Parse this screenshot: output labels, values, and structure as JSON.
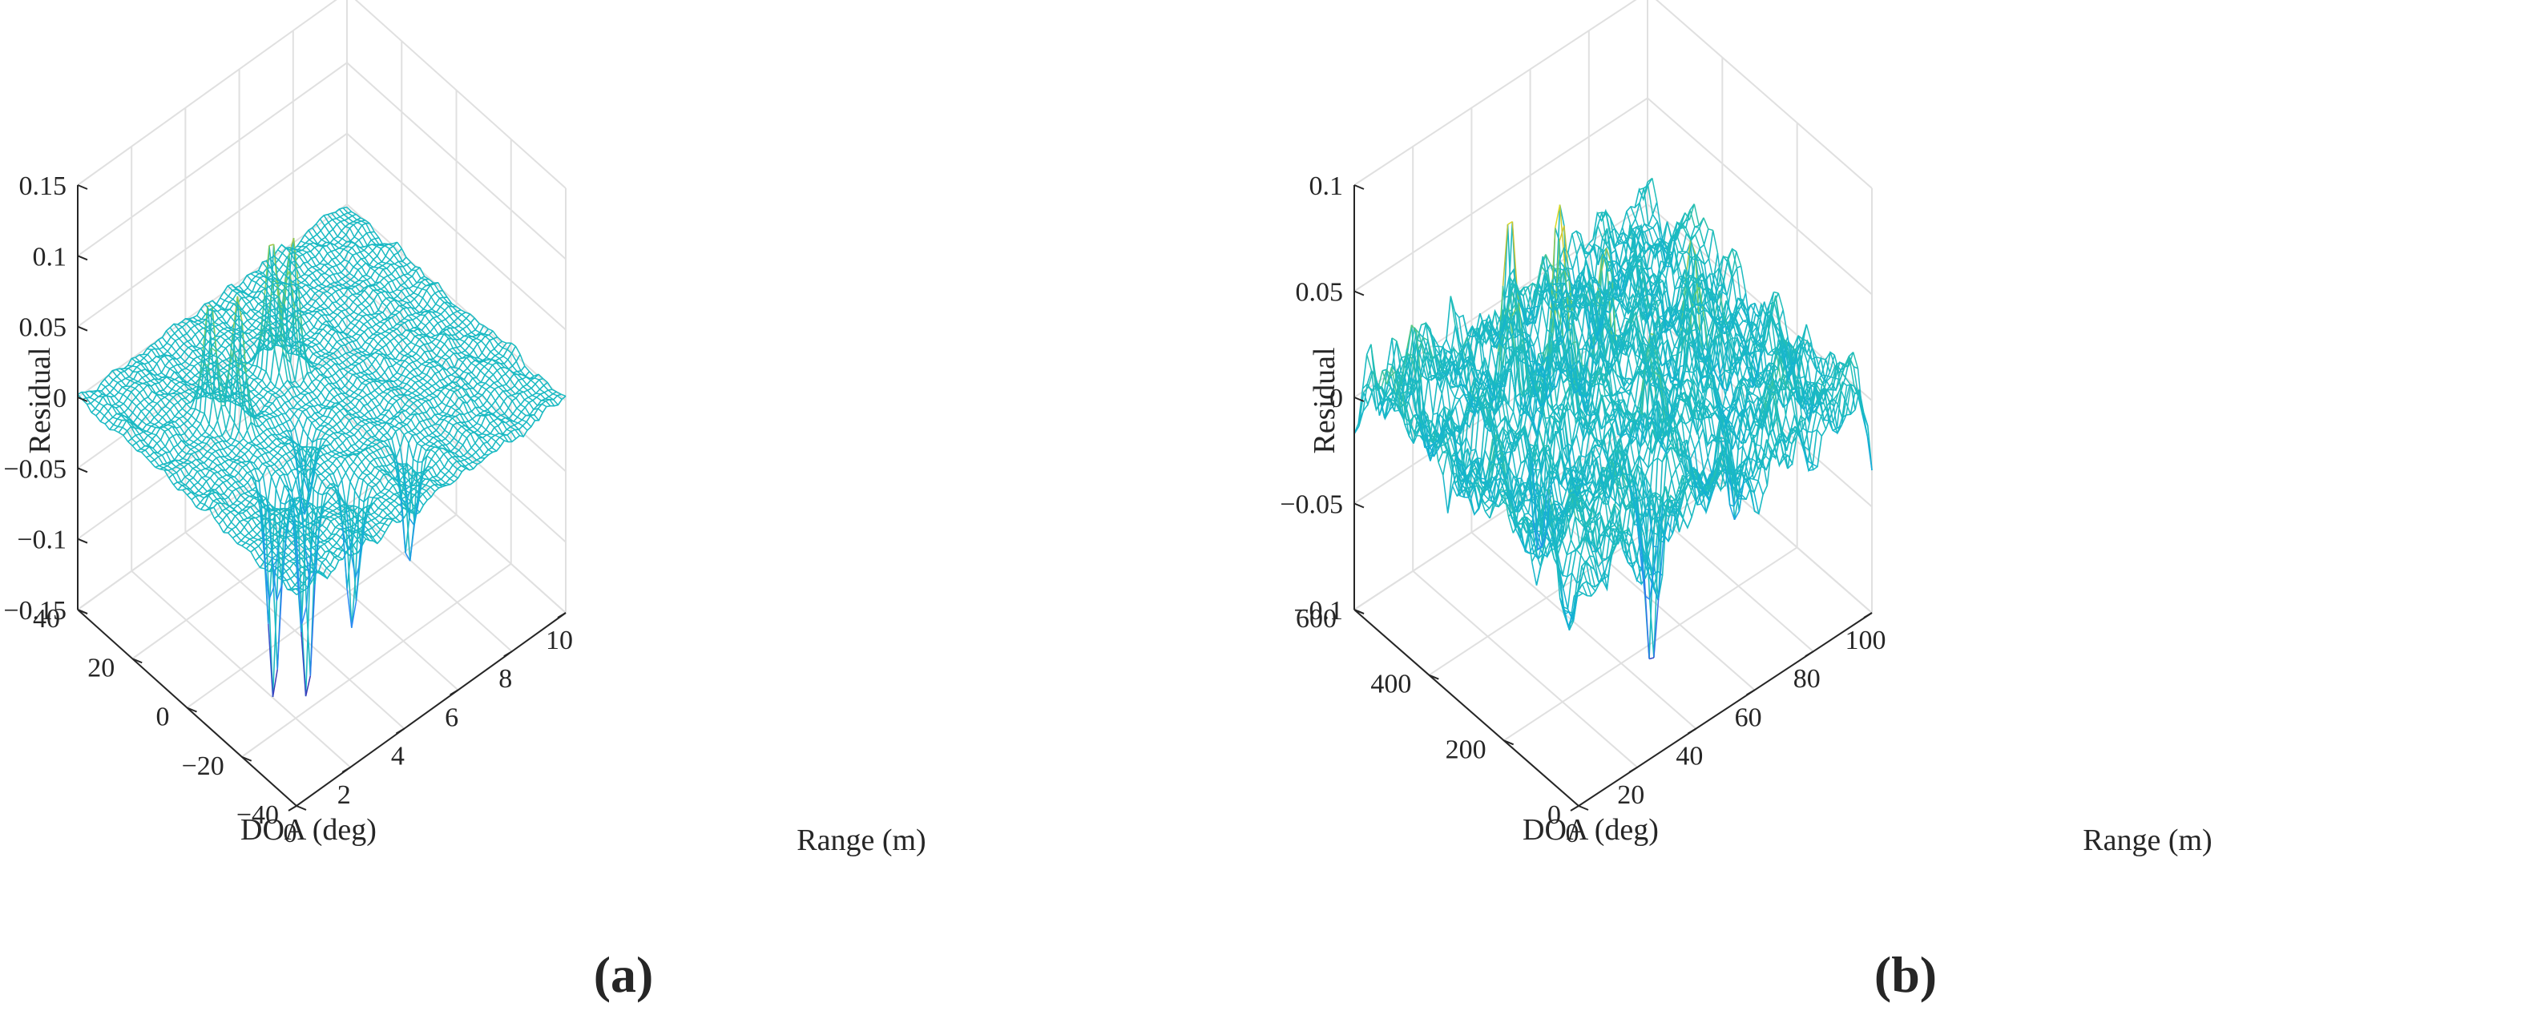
{
  "chart_data": [
    {
      "type": "surface",
      "panel_label": "(a)",
      "title": "",
      "xlabel": "Range (m)",
      "ylabel": "DOA (deg)",
      "zlabel": "Residual",
      "xlim": [
        0,
        10
      ],
      "ylim": [
        -40,
        40
      ],
      "zlim": [
        -0.15,
        0.15
      ],
      "x_ticks": [
        0,
        2,
        4,
        6,
        8,
        10
      ],
      "x_tick_labels": [
        "0",
        "2",
        "4",
        "6",
        "8",
        "10"
      ],
      "y_ticks": [
        -40,
        -20,
        0,
        20,
        40
      ],
      "y_tick_labels": [
        "−40",
        "−20",
        "0",
        "20",
        "40"
      ],
      "z_ticks": [
        -0.15,
        -0.1,
        -0.05,
        0,
        0.05,
        0.1,
        0.15
      ],
      "z_tick_labels": [
        "−0.15",
        "−0.1",
        "−0.05",
        "0",
        "0.05",
        "0.1",
        "0.15"
      ],
      "grid": true,
      "noise_amplitude": 0.006,
      "features": [
        {
          "range": 2.3,
          "doa": 14,
          "residual": 0.085
        },
        {
          "range": 2.7,
          "doa": 8,
          "residual": 0.09
        },
        {
          "range": 4.6,
          "doa": 14,
          "residual": 0.1
        },
        {
          "range": 5.1,
          "doa": 12,
          "residual": 0.1
        },
        {
          "range": 3.9,
          "doa": -5,
          "residual": -0.06
        },
        {
          "range": 2.0,
          "doa": -12,
          "residual": -0.15
        },
        {
          "range": 2.7,
          "doa": -17,
          "residual": -0.16
        },
        {
          "range": 3.6,
          "doa": -25,
          "residual": -0.1
        },
        {
          "range": 5.6,
          "doa": -26,
          "residual": -0.08
        }
      ]
    },
    {
      "type": "surface",
      "panel_label": "(b)",
      "title": "",
      "xlabel": "Range (m)",
      "ylabel": "DOA (deg)",
      "zlabel": "Residual",
      "xlim": [
        0,
        100
      ],
      "ylim": [
        0,
        600
      ],
      "zlim": [
        -0.1,
        0.1
      ],
      "x_ticks": [
        0,
        20,
        40,
        60,
        80,
        100
      ],
      "x_tick_labels": [
        "0",
        "20",
        "40",
        "60",
        "80",
        "100"
      ],
      "y_ticks": [
        0,
        200,
        400,
        600
      ],
      "y_tick_labels": [
        "0",
        "200",
        "400",
        "600"
      ],
      "z_ticks": [
        -0.1,
        -0.05,
        0,
        0.05,
        0.1
      ],
      "z_tick_labels": [
        "−0.1",
        "−0.05",
        "0",
        "0.05",
        "0.1"
      ],
      "grid": true,
      "noise_amplitude": 0.03,
      "features": [
        {
          "range": 30,
          "doa": 420,
          "residual": 0.1
        },
        {
          "range": 42,
          "doa": 380,
          "residual": 0.09
        },
        {
          "range": 55,
          "doa": 360,
          "residual": 0.08
        },
        {
          "range": 10,
          "doa": 520,
          "residual": 0.05
        },
        {
          "range": 70,
          "doa": 250,
          "residual": 0.06
        },
        {
          "range": 50,
          "doa": 200,
          "residual": 0.05
        },
        {
          "range": 40,
          "doa": 120,
          "residual": -0.09
        },
        {
          "range": 25,
          "doa": 300,
          "residual": -0.06
        },
        {
          "range": 65,
          "doa": 100,
          "residual": -0.05
        }
      ]
    }
  ]
}
